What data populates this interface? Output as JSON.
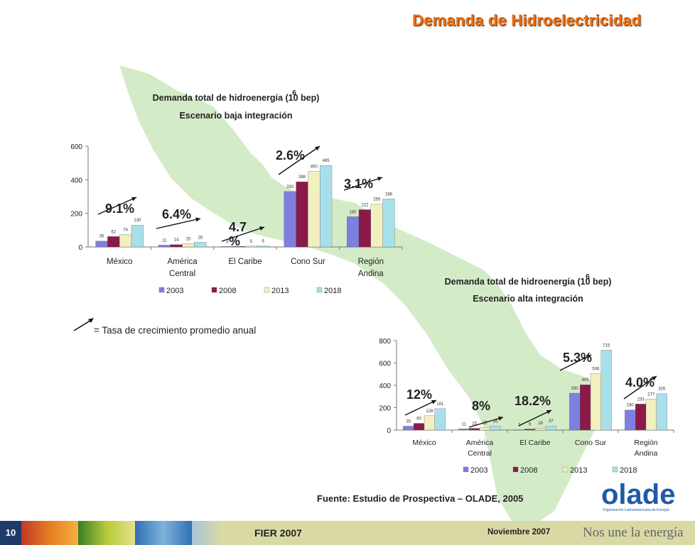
{
  "page_title": "Demanda de Hidroelectricidad",
  "legend_key_text": "= Tasa de crecimiento promedio anual",
  "source": "Fuente: Estudio de Prospectiva – OLADE, 2005",
  "footer": {
    "page_number": "10",
    "event": "FIER 2007",
    "date": "Noviembre 2007",
    "slogan": "Nos une la energía"
  },
  "logo": {
    "word": "olade",
    "subtitle": "Organización Latinoamericana de Energía"
  },
  "colors": {
    "title": "#f07010",
    "series": [
      "#7f7fe0",
      "#8b1a4a",
      "#f2f0c0",
      "#a8e0ea"
    ],
    "map": "#cfe8c0",
    "footer": "#d9d9a6"
  },
  "chart_data": [
    {
      "type": "bar",
      "title_line1": "Demanda total de hidroenergía (10",
      "title_sup": "6",
      "title_line1_end": "bep)",
      "title_line2": "Escenario baja integración",
      "categories": [
        "México",
        "América Central",
        "El Caribe",
        "Cono Sur",
        "Región Andina"
      ],
      "category_lines": [
        [
          "México"
        ],
        [
          "América",
          "Central"
        ],
        [
          "El Caribe"
        ],
        [
          "Cono Sur"
        ],
        [
          "Región",
          "Andina"
        ]
      ],
      "series": [
        {
          "name": "2003",
          "values": [
            35,
            11,
            3,
            330,
            180
          ]
        },
        {
          "name": "2008",
          "values": [
            62,
            14,
            3,
            388,
            222
          ]
        },
        {
          "name": "2013",
          "values": [
            74,
            20,
            5,
            450,
            255
          ]
        },
        {
          "name": "2018",
          "values": [
            130,
            28,
            6,
            485,
            286
          ]
        }
      ],
      "value_labels": [
        [
          "35",
          "11",
          "3",
          "330",
          "180"
        ],
        [
          "62",
          "14",
          "",
          "388",
          "222"
        ],
        [
          "74",
          "20",
          "5",
          "450",
          "255"
        ],
        [
          "130",
          "28",
          "6",
          "485",
          "286"
        ]
      ],
      "yticks": [
        0,
        200,
        400,
        600
      ],
      "ylim": [
        0,
        600
      ],
      "growth_rates": [
        "9.1%",
        "6.4%",
        "4.7 %",
        "2.6%",
        "3.1%"
      ],
      "legend": "bottom"
    },
    {
      "type": "bar",
      "title_line1": "Demanda total de hidroenergía (10",
      "title_sup": "6",
      "title_line1_end": "bep)",
      "title_line2": "Escenario alta integración",
      "categories": [
        "México",
        "América Central",
        "El Caribe",
        "Cono Sur",
        "Región Andina"
      ],
      "category_lines": [
        [
          "México"
        ],
        [
          "América",
          "Central"
        ],
        [
          "El Caribe"
        ],
        [
          "Cono Sur"
        ],
        [
          "Región",
          "Andina"
        ]
      ],
      "series": [
        {
          "name": "2003",
          "values": [
            35,
            11,
            3,
            330,
            180
          ]
        },
        {
          "name": "2008",
          "values": [
            60,
            15,
            9,
            405,
            233
          ]
        },
        {
          "name": "2013",
          "values": [
            128,
            22,
            18,
            506,
            277
          ]
        },
        {
          "name": "2018",
          "values": [
            191,
            35,
            37,
            715,
            326
          ]
        }
      ],
      "value_labels": [
        [
          "35",
          "11",
          "3",
          "330",
          "180"
        ],
        [
          "60",
          "15",
          "9",
          "405",
          "233"
        ],
        [
          "128",
          "22",
          "18",
          "506",
          "277"
        ],
        [
          "191",
          "35",
          "37",
          "715",
          "326"
        ]
      ],
      "yticks": [
        0,
        200,
        400,
        600,
        800
      ],
      "ylim": [
        0,
        800
      ],
      "growth_rates": [
        "12%",
        "8%",
        "18.2%",
        "5.3%",
        "4.0%"
      ],
      "legend": "bottom"
    }
  ]
}
